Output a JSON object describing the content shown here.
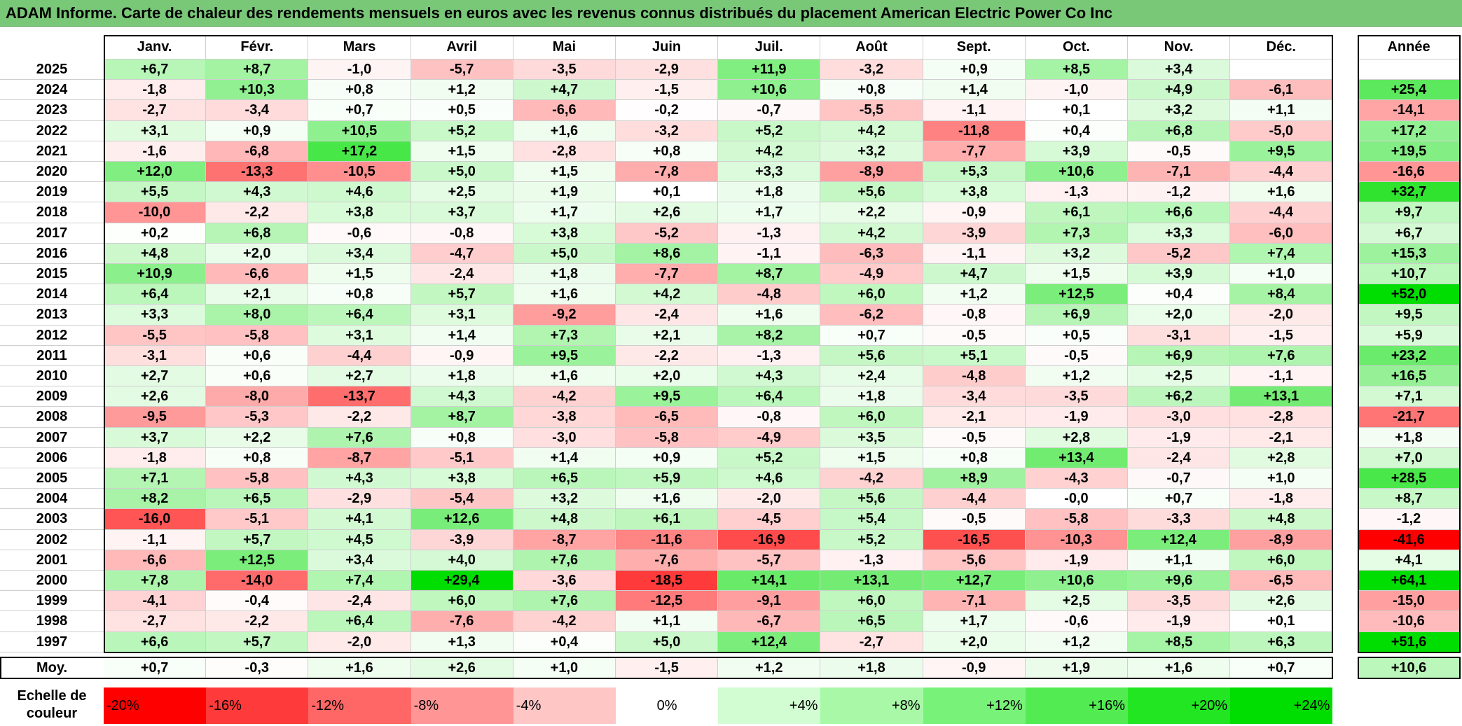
{
  "title": "ADAM Informe. Carte de chaleur des rendements mensuels en euros avec les revenus connus distribués du placement American Electric Power Co Inc",
  "chart_data": {
    "type": "heatmap",
    "months": [
      "Janv.",
      "Févr.",
      "Mars",
      "Avril",
      "Mai",
      "Juin",
      "Juil.",
      "Août",
      "Sept.",
      "Oct.",
      "Nov.",
      "Déc."
    ],
    "year_header": "Année",
    "rows": [
      {
        "year": "2025",
        "values": [
          "+6,7",
          "+8,7",
          "-1,0",
          "-5,7",
          "-3,5",
          "-2,9",
          "+11,9",
          "-3,2",
          "+0,9",
          "+8,5",
          "+3,4",
          ""
        ],
        "annual": ""
      },
      {
        "year": "2024",
        "values": [
          "-1,8",
          "+10,3",
          "+0,8",
          "+1,2",
          "+4,7",
          "-1,5",
          "+10,6",
          "+0,8",
          "+1,4",
          "-1,0",
          "+4,9",
          "-6,1"
        ],
        "annual": "+25,4"
      },
      {
        "year": "2023",
        "values": [
          "-2,7",
          "-3,4",
          "+0,7",
          "+0,5",
          "-6,6",
          "-0,2",
          "-0,7",
          "-5,5",
          "-1,1",
          "+0,1",
          "+3,2",
          "+1,1"
        ],
        "annual": "-14,1"
      },
      {
        "year": "2022",
        "values": [
          "+3,1",
          "+0,9",
          "+10,5",
          "+5,2",
          "+1,6",
          "-3,2",
          "+5,2",
          "+4,2",
          "-11,8",
          "+0,4",
          "+6,8",
          "-5,0"
        ],
        "annual": "+17,2"
      },
      {
        "year": "2021",
        "values": [
          "-1,6",
          "-6,8",
          "+17,2",
          "+1,5",
          "-2,8",
          "+0,8",
          "+4,2",
          "+3,2",
          "-7,7",
          "+3,9",
          "-0,5",
          "+9,5"
        ],
        "annual": "+19,5"
      },
      {
        "year": "2020",
        "values": [
          "+12,0",
          "-13,3",
          "-10,5",
          "+5,0",
          "+1,5",
          "-7,8",
          "+3,3",
          "-8,9",
          "+5,3",
          "+10,6",
          "-7,1",
          "-4,4"
        ],
        "annual": "-16,6"
      },
      {
        "year": "2019",
        "values": [
          "+5,5",
          "+4,3",
          "+4,6",
          "+2,5",
          "+1,9",
          "+0,1",
          "+1,8",
          "+5,6",
          "+3,8",
          "-1,3",
          "-1,2",
          "+1,6"
        ],
        "annual": "+32,7"
      },
      {
        "year": "2018",
        "values": [
          "-10,0",
          "-2,2",
          "+3,8",
          "+3,7",
          "+1,7",
          "+2,6",
          "+1,7",
          "+2,2",
          "-0,9",
          "+6,1",
          "+6,6",
          "-4,4"
        ],
        "annual": "+9,7"
      },
      {
        "year": "2017",
        "values": [
          "+0,2",
          "+6,8",
          "-0,6",
          "-0,8",
          "+3,8",
          "-5,2",
          "-1,3",
          "+4,2",
          "-3,9",
          "+7,3",
          "+3,3",
          "-6,0"
        ],
        "annual": "+6,7"
      },
      {
        "year": "2016",
        "values": [
          "+4,8",
          "+2,0",
          "+3,4",
          "-4,7",
          "+5,0",
          "+8,6",
          "-1,1",
          "-6,3",
          "-1,1",
          "+3,2",
          "-5,2",
          "+7,4"
        ],
        "annual": "+15,3"
      },
      {
        "year": "2015",
        "values": [
          "+10,9",
          "-6,6",
          "+1,5",
          "-2,4",
          "+1,8",
          "-7,7",
          "+8,7",
          "-4,9",
          "+4,7",
          "+1,5",
          "+3,9",
          "+1,0"
        ],
        "annual": "+10,7"
      },
      {
        "year": "2014",
        "values": [
          "+6,4",
          "+2,1",
          "+0,8",
          "+5,7",
          "+1,6",
          "+4,2",
          "-4,8",
          "+6,0",
          "+1,2",
          "+12,5",
          "+0,4",
          "+8,4"
        ],
        "annual": "+52,0"
      },
      {
        "year": "2013",
        "values": [
          "+3,3",
          "+8,0",
          "+6,4",
          "+3,1",
          "-9,2",
          "-2,4",
          "+1,6",
          "-6,2",
          "-0,8",
          "+6,9",
          "+2,0",
          "-2,0"
        ],
        "annual": "+9,5"
      },
      {
        "year": "2012",
        "values": [
          "-5,5",
          "-5,8",
          "+3,1",
          "+1,4",
          "+7,3",
          "+2,1",
          "+8,2",
          "+0,7",
          "-0,5",
          "+0,5",
          "-3,1",
          "-1,5"
        ],
        "annual": "+5,9"
      },
      {
        "year": "2011",
        "values": [
          "-3,1",
          "+0,6",
          "-4,4",
          "-0,9",
          "+9,5",
          "-2,2",
          "-1,3",
          "+5,6",
          "+5,1",
          "-0,5",
          "+6,9",
          "+7,6"
        ],
        "annual": "+23,2"
      },
      {
        "year": "2010",
        "values": [
          "+2,7",
          "+0,6",
          "+2,7",
          "+1,8",
          "+1,6",
          "+2,0",
          "+4,3",
          "+2,4",
          "-4,8",
          "+1,2",
          "+2,5",
          "-1,1"
        ],
        "annual": "+16,5"
      },
      {
        "year": "2009",
        "values": [
          "+2,6",
          "-8,0",
          "-13,7",
          "+4,3",
          "-4,2",
          "+9,5",
          "+6,4",
          "+1,8",
          "-3,4",
          "-3,5",
          "+6,2",
          "+13,1"
        ],
        "annual": "+7,1"
      },
      {
        "year": "2008",
        "values": [
          "-9,5",
          "-5,3",
          "-2,2",
          "+8,7",
          "-3,8",
          "-6,5",
          "-0,8",
          "+6,0",
          "-2,1",
          "-1,9",
          "-3,0",
          "-2,8"
        ],
        "annual": "-21,7"
      },
      {
        "year": "2007",
        "values": [
          "+3,7",
          "+2,2",
          "+7,6",
          "+0,8",
          "-3,0",
          "-5,8",
          "-4,9",
          "+3,5",
          "-0,5",
          "+2,8",
          "-1,9",
          "-2,1"
        ],
        "annual": "+1,8"
      },
      {
        "year": "2006",
        "values": [
          "-1,8",
          "+0,8",
          "-8,7",
          "-5,1",
          "+1,4",
          "+0,9",
          "+5,2",
          "+1,5",
          "+0,8",
          "+13,4",
          "-2,4",
          "+2,8"
        ],
        "annual": "+7,0"
      },
      {
        "year": "2005",
        "values": [
          "+7,1",
          "-5,8",
          "+4,3",
          "+3,8",
          "+6,5",
          "+5,9",
          "+4,6",
          "-4,2",
          "+8,9",
          "-4,3",
          "-0,7",
          "+1,0"
        ],
        "annual": "+28,5"
      },
      {
        "year": "2004",
        "values": [
          "+8,2",
          "+6,5",
          "-2,9",
          "-5,4",
          "+3,2",
          "+1,6",
          "-2,0",
          "+5,6",
          "-4,4",
          "-0,0",
          "+0,7",
          "-1,8"
        ],
        "annual": "+8,7"
      },
      {
        "year": "2003",
        "values": [
          "-16,0",
          "-5,1",
          "+4,1",
          "+12,6",
          "+4,8",
          "+6,1",
          "-4,5",
          "+5,4",
          "-0,5",
          "-5,8",
          "-3,3",
          "+4,8"
        ],
        "annual": "-1,2"
      },
      {
        "year": "2002",
        "values": [
          "-1,1",
          "+5,7",
          "+4,5",
          "-3,9",
          "-8,7",
          "-11,6",
          "-16,9",
          "+5,2",
          "-16,5",
          "-10,3",
          "+12,4",
          "-8,9"
        ],
        "annual": "-41,6"
      },
      {
        "year": "2001",
        "values": [
          "-6,6",
          "+12,5",
          "+3,4",
          "+4,0",
          "+7,6",
          "-7,6",
          "-5,7",
          "-1,3",
          "-5,6",
          "-1,9",
          "+1,1",
          "+6,0"
        ],
        "annual": "+4,1"
      },
      {
        "year": "2000",
        "values": [
          "+7,8",
          "-14,0",
          "+7,4",
          "+29,4",
          "-3,6",
          "-18,5",
          "+14,1",
          "+13,1",
          "+12,7",
          "+10,6",
          "+9,6",
          "-6,5"
        ],
        "annual": "+64,1"
      },
      {
        "year": "1999",
        "values": [
          "-4,1",
          "-0,4",
          "-2,4",
          "+6,0",
          "+7,6",
          "-12,5",
          "-9,1",
          "+6,0",
          "-7,1",
          "+2,5",
          "-3,5",
          "+2,6"
        ],
        "annual": "-15,0"
      },
      {
        "year": "1998",
        "values": [
          "-2,7",
          "-2,2",
          "+6,4",
          "-7,6",
          "-4,2",
          "+1,1",
          "-6,7",
          "+6,5",
          "+1,7",
          "-0,6",
          "-1,9",
          "+0,1"
        ],
        "annual": "-10,6"
      },
      {
        "year": "1997",
        "values": [
          "+6,6",
          "+5,7",
          "-2,0",
          "+1,3",
          "+0,4",
          "+5,0",
          "+12,4",
          "-2,7",
          "+2,0",
          "+1,2",
          "+8,5",
          "+6,3"
        ],
        "annual": "+51,6"
      }
    ],
    "average": {
      "label": "Moy.",
      "values": [
        "+0,7",
        "-0,3",
        "+1,6",
        "+2,6",
        "+1,0",
        "-1,5",
        "+1,2",
        "+1,8",
        "-0,9",
        "+1,9",
        "+1,6",
        "+0,7"
      ],
      "annual": "+10,6"
    },
    "scale": {
      "label": "Echelle de couleur",
      "stops": [
        {
          "text": "-20%",
          "value": -20,
          "color": "#ff0000"
        },
        {
          "text": "-16%",
          "value": -16,
          "color": "#ff3a3a"
        },
        {
          "text": "-12%",
          "value": -12,
          "color": "#ff6666"
        },
        {
          "text": "-8%",
          "value": -8,
          "color": "#ff9595"
        },
        {
          "text": "-4%",
          "value": -4,
          "color": "#ffc6c6"
        },
        {
          "text": "0%",
          "value": 0,
          "color": "#ffffff"
        },
        {
          "text": "+4%",
          "value": 4,
          "color": "#d2fcd2"
        },
        {
          "text": "+8%",
          "value": 8,
          "color": "#a8f8a8"
        },
        {
          "text": "+12%",
          "value": 12,
          "color": "#78f278"
        },
        {
          "text": "+16%",
          "value": 16,
          "color": "#52ec52"
        },
        {
          "text": "+20%",
          "value": 20,
          "color": "#22e622"
        },
        {
          "text": "+24%",
          "value": 24,
          "color": "#00dd00"
        }
      ]
    },
    "colors": {
      "title_bar": "#79c878",
      "positive": "#00dd00",
      "negative": "#ff0000",
      "neutral": "#ffffff"
    }
  }
}
